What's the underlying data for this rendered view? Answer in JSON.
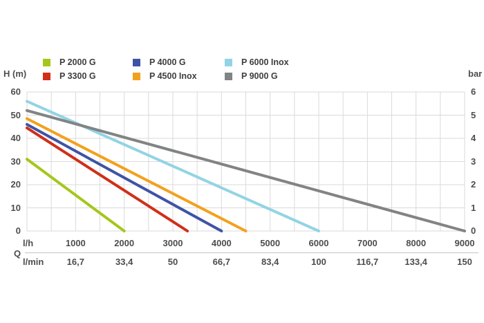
{
  "chart_data": {
    "type": "line",
    "grid": true,
    "legend_position": "top",
    "x_axis": {
      "label": "Q",
      "unit_primary": "l/h",
      "unit_secondary": "l/min",
      "range": [
        0,
        9000
      ],
      "grid_step": 500,
      "ticks": [
        {
          "q": 1000,
          "lh": "1000",
          "lmin": "16,7"
        },
        {
          "q": 2000,
          "lh": "2000",
          "lmin": "33,4"
        },
        {
          "q": 3000,
          "lh": "3000",
          "lmin": "50"
        },
        {
          "q": 4000,
          "lh": "4000",
          "lmin": "66,7"
        },
        {
          "q": 5000,
          "lh": "5000",
          "lmin": "83,4"
        },
        {
          "q": 6000,
          "lh": "6000",
          "lmin": "100"
        },
        {
          "q": 7000,
          "lh": "7000",
          "lmin": "116,7"
        },
        {
          "q": 8000,
          "lh": "8000",
          "lmin": "133,4"
        },
        {
          "q": 9000,
          "lh": "9000",
          "lmin": "150"
        }
      ]
    },
    "y_axis_left": {
      "label": "H (m)",
      "range": [
        0,
        60
      ],
      "grid_step": 10,
      "ticks": [
        "0",
        "10",
        "20",
        "30",
        "40",
        "50",
        "60"
      ]
    },
    "y_axis_right": {
      "label": "bar",
      "range": [
        0,
        6
      ],
      "ticks": [
        "0",
        "1",
        "2",
        "3",
        "4",
        "5",
        "6"
      ]
    },
    "series": [
      {
        "name": "P 2000 G",
        "color": "#a5c71b",
        "points": [
          [
            0,
            31
          ],
          [
            2000,
            0
          ]
        ]
      },
      {
        "name": "P 3300 G",
        "color": "#d02f18",
        "points": [
          [
            0,
            44.5
          ],
          [
            3300,
            0
          ]
        ]
      },
      {
        "name": "P 4000 G",
        "color": "#3f53a6",
        "points": [
          [
            0,
            46
          ],
          [
            4000,
            0
          ]
        ]
      },
      {
        "name": "P 4500 Inox",
        "color": "#f2a11d",
        "points": [
          [
            0,
            48.5
          ],
          [
            4500,
            0
          ]
        ]
      },
      {
        "name": "P 6000 Inox",
        "color": "#92d4e4",
        "points": [
          [
            0,
            56
          ],
          [
            6000,
            0
          ]
        ]
      },
      {
        "name": "P 9000 G",
        "color": "#818385",
        "points": [
          [
            0,
            52
          ],
          [
            9000,
            0
          ]
        ]
      }
    ],
    "style": {
      "gridline_color": "#dadada",
      "text_color": "#4d4d4d",
      "line_width": 4
    }
  }
}
